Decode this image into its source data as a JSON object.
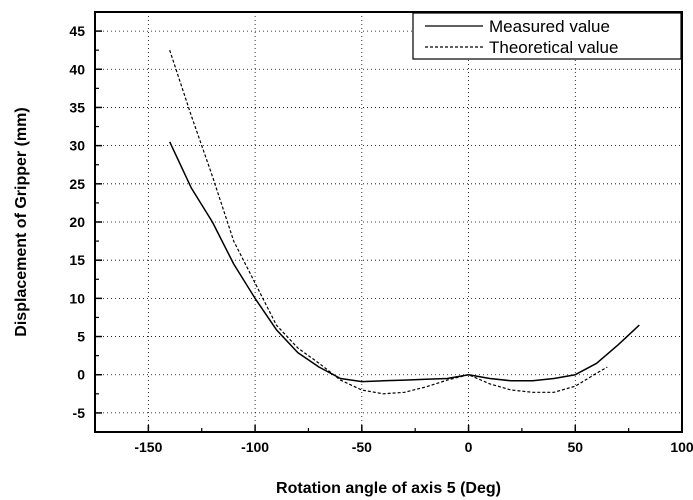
{
  "chart_data": {
    "type": "line",
    "title": "",
    "xlabel": "Rotation angle of axis 5 (Deg)",
    "ylabel": "Displacement of Gripper (mm)",
    "xlim": [
      -175,
      100
    ],
    "ylim": [
      -7.5,
      47.5
    ],
    "xticks": [
      -150,
      -100,
      -50,
      0,
      50,
      100
    ],
    "xticklabels": [
      "-150",
      "-100",
      "-50",
      "0",
      "50",
      "100"
    ],
    "yticks": [
      -5,
      0,
      5,
      10,
      15,
      20,
      25,
      30,
      35,
      40,
      45
    ],
    "yticklabels": [
      "-5",
      "0",
      "5",
      "10",
      "15",
      "20",
      "25",
      "30",
      "35",
      "40",
      "45"
    ],
    "grid": true,
    "legend_position": "top-right",
    "series": [
      {
        "name": "Measured value",
        "style": "solid",
        "color": "#000000",
        "x": [
          -140,
          -130,
          -120,
          -110,
          -100,
          -90,
          -80,
          -70,
          -60,
          -50,
          -40,
          -30,
          -20,
          -10,
          0,
          10,
          20,
          30,
          40,
          50,
          60,
          70,
          80
        ],
        "y": [
          30.5,
          24.5,
          20,
          14.5,
          10,
          5.9,
          2.9,
          1.0,
          -0.5,
          -0.9,
          -0.8,
          -0.7,
          -0.6,
          -0.5,
          0,
          -0.5,
          -0.8,
          -0.8,
          -0.5,
          0,
          1.5,
          3.9,
          6.5
        ]
      },
      {
        "name": "Theoretical value",
        "style": "dashed",
        "color": "#000000",
        "x": [
          -140,
          -130,
          -120,
          -110,
          -100,
          -90,
          -80,
          -70,
          -60,
          -50,
          -40,
          -30,
          -20,
          -10,
          0,
          10,
          20,
          30,
          40,
          50,
          60,
          65
        ],
        "y": [
          42.5,
          34,
          26,
          17.5,
          12,
          6.5,
          3.5,
          1.5,
          -0.7,
          -2,
          -2.5,
          -2.3,
          -1.6,
          -0.7,
          0,
          -1.2,
          -2.0,
          -2.3,
          -2.3,
          -1.5,
          0.2,
          1.0
        ]
      }
    ]
  }
}
